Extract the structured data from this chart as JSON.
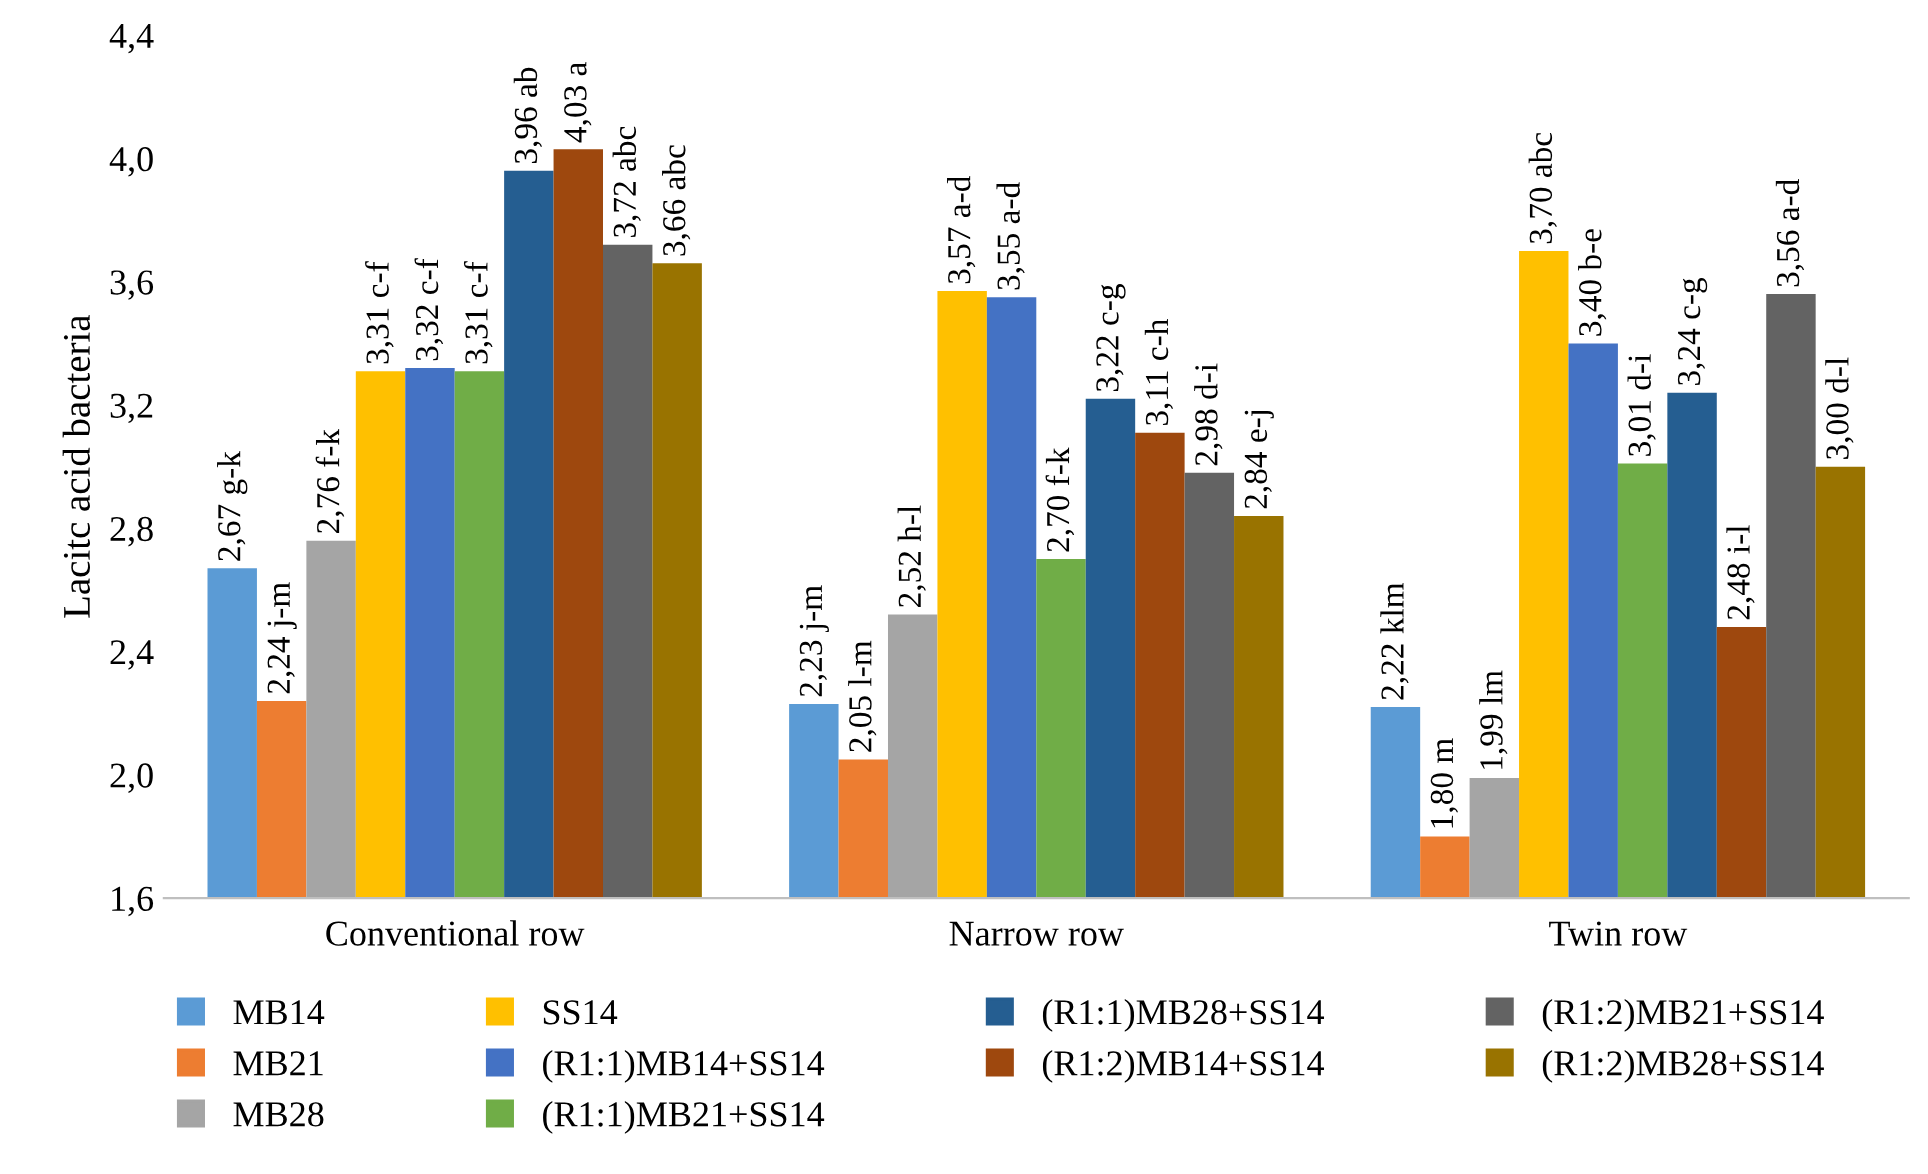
{
  "chart_data": {
    "type": "bar",
    "ylabel": "Lacitc acid bacteria",
    "categories": [
      "Conventional row",
      "Narrow row",
      "Twin row"
    ],
    "ylim": [
      1.6,
      4.4
    ],
    "yticks": [
      {
        "value": 1.6,
        "label": "1,6"
      },
      {
        "value": 2.0,
        "label": "2,0"
      },
      {
        "value": 2.4,
        "label": "2,4"
      },
      {
        "value": 2.8,
        "label": "2,8"
      },
      {
        "value": 3.2,
        "label": "3,2"
      },
      {
        "value": 3.6,
        "label": "3,6"
      },
      {
        "value": 4.0,
        "label": "4,0"
      },
      {
        "value": 4.4,
        "label": "4,4"
      }
    ],
    "grid": false,
    "legend": "bottom",
    "series": [
      {
        "name": "MB14",
        "color": "#5b9bd5",
        "values": [
          2.67,
          2.23,
          2.22
        ],
        "value_labels": [
          "2,67 g-k",
          "2,23 j-m",
          "2,22 klm"
        ]
      },
      {
        "name": "MB21",
        "color": "#ed7d31",
        "values": [
          2.24,
          2.05,
          1.8
        ],
        "value_labels": [
          "2,24 j-m",
          "2,05 l-m",
          "1,80 m"
        ]
      },
      {
        "name": "MB28",
        "color": "#a5a5a5",
        "values": [
          2.76,
          2.52,
          1.99
        ],
        "value_labels": [
          "2,76 f-k",
          "2,52 h-l",
          "1,99 lm"
        ]
      },
      {
        "name": "SS14",
        "color": "#ffc000",
        "values": [
          3.31,
          3.57,
          3.7
        ],
        "value_labels": [
          "3,31 c-f",
          "3,57 a-d",
          "3,70 abc"
        ]
      },
      {
        "name": "(R1:1)MB14+SS14",
        "color": "#4472c4",
        "values": [
          3.32,
          3.55,
          3.4
        ],
        "value_labels": [
          "3,32 c-f",
          "3,55 a-d",
          "3,40 b-e"
        ]
      },
      {
        "name": "(R1:1)MB21+SS14",
        "color": "#70ad47",
        "values": [
          3.31,
          2.7,
          3.01
        ],
        "value_labels": [
          "3,31 c-f",
          "2,70 f-k",
          "3,01 d-i"
        ]
      },
      {
        "name": "(R1:1)MB28+SS14",
        "color": "#255e91",
        "values": [
          3.96,
          3.22,
          3.24
        ],
        "value_labels": [
          "3,96 ab",
          "3,22 c-g",
          "3,24 c-g"
        ]
      },
      {
        "name": "(R1:2)MB14+SS14",
        "color": "#9e480e",
        "values": [
          4.03,
          3.11,
          2.48
        ],
        "value_labels": [
          "4,03 a",
          "3,11 c-h",
          "2,48 i-l"
        ]
      },
      {
        "name": "(R1:2)MB21+SS14",
        "color": "#636363",
        "values": [
          3.72,
          2.98,
          3.56
        ],
        "value_labels": [
          "3,72 abc",
          "2,98 d-i",
          "3,56 a-d"
        ]
      },
      {
        "name": "(R1:2)MB28+SS14",
        "color": "#997300",
        "values": [
          3.66,
          2.84,
          3.0
        ],
        "value_labels": [
          "3,66 abc",
          "2,84 e-j",
          "3,00 d-l"
        ]
      }
    ]
  }
}
